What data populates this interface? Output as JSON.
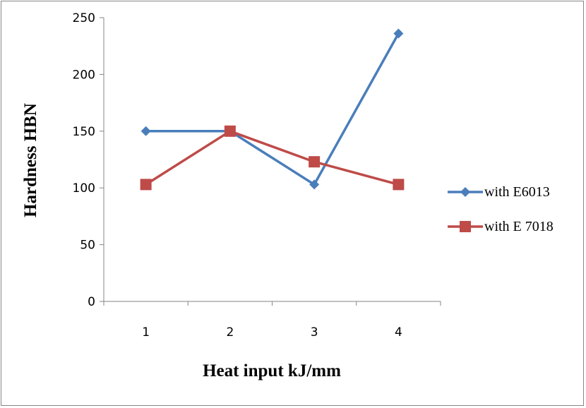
{
  "chart_data": {
    "type": "line",
    "title": "",
    "xlabel": "Heat input kJ/mm",
    "ylabel": "Hardness HBN",
    "x": [
      1,
      2,
      3,
      4
    ],
    "xticks": [
      "1",
      "2",
      "3",
      "4"
    ],
    "ylim": [
      0,
      250
    ],
    "yticks": [
      0,
      50,
      100,
      150,
      200,
      250
    ],
    "grid": false,
    "legend_position": "right",
    "series": [
      {
        "name": "with E6013",
        "values": [
          150,
          150,
          103,
          236
        ],
        "color": "#4a7ebb",
        "marker": "diamond"
      },
      {
        "name": "with E 7018",
        "values": [
          103,
          150,
          123,
          103
        ],
        "color": "#be4b48",
        "marker": "square"
      }
    ]
  }
}
